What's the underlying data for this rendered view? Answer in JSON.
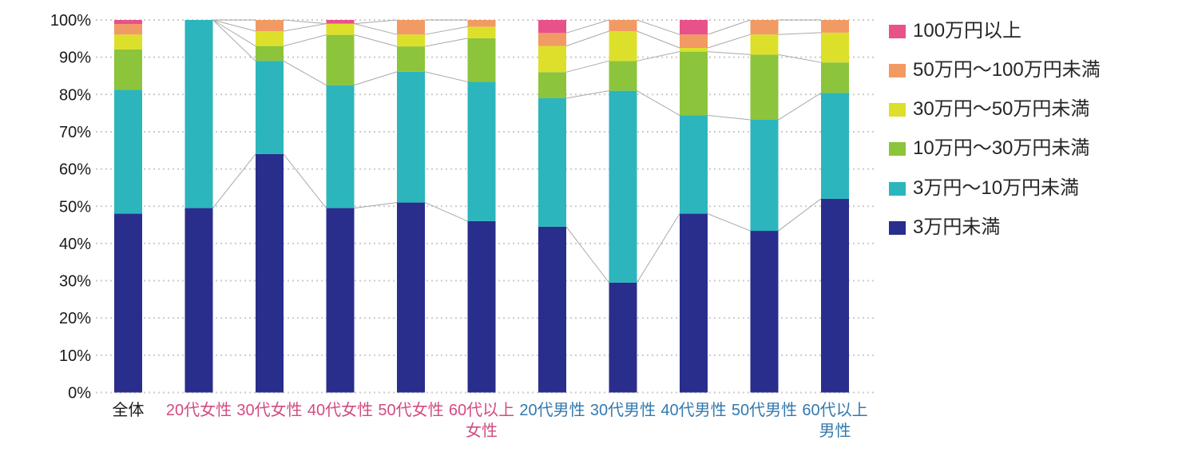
{
  "chart_data": {
    "type": "bar",
    "subtype": "stacked-100-percent",
    "title": "",
    "xlabel": "",
    "ylabel": "",
    "ylim": [
      0,
      100
    ],
    "y_ticks": [
      "0%",
      "10%",
      "20%",
      "30%",
      "40%",
      "50%",
      "60%",
      "70%",
      "80%",
      "90%",
      "100%"
    ],
    "grid": "horizontal-dotted",
    "legend_position": "right",
    "categories": [
      {
        "label": [
          "全体"
        ],
        "label_color": "#1a1a1a"
      },
      {
        "label": [
          "20代女性"
        ],
        "label_color": "#d14b82"
      },
      {
        "label": [
          "30代女性"
        ],
        "label_color": "#d14b82"
      },
      {
        "label": [
          "40代女性"
        ],
        "label_color": "#d14b82"
      },
      {
        "label": [
          "50代女性"
        ],
        "label_color": "#d14b82"
      },
      {
        "label": [
          "60代以上",
          "女性"
        ],
        "label_color": "#d14b82"
      },
      {
        "label": [
          "20代男性"
        ],
        "label_color": "#3379ae"
      },
      {
        "label": [
          "30代男性"
        ],
        "label_color": "#3379ae"
      },
      {
        "label": [
          "40代男性"
        ],
        "label_color": "#3379ae"
      },
      {
        "label": [
          "50代男性"
        ],
        "label_color": "#3379ae"
      },
      {
        "label": [
          "60代以上",
          "男性"
        ],
        "label_color": "#3379ae"
      }
    ],
    "series": [
      {
        "name": "3万円未満",
        "color": "#292e8c",
        "values": [
          48,
          49.5,
          64,
          49.5,
          51,
          46,
          44.5,
          29.5,
          48,
          43.4,
          52
        ]
      },
      {
        "name": "3万円〜10万円未満",
        "color": "#2cb5bd",
        "values": [
          33.3,
          50.5,
          25,
          33,
          35.1,
          37.4,
          34.5,
          51.5,
          26.4,
          29.8,
          28.4
        ]
      },
      {
        "name": "10万円〜30万円未満",
        "color": "#8cc43c",
        "values": [
          10.8,
          0,
          4,
          13.5,
          6.8,
          11.7,
          7,
          8,
          17.1,
          17.5,
          8.2
        ]
      },
      {
        "name": "30万円〜50万円未満",
        "color": "#dce02a",
        "values": [
          4,
          0,
          4,
          3,
          3.2,
          3.1,
          7,
          8,
          1,
          5.4,
          8
        ]
      },
      {
        "name": "50万円〜100万円未満",
        "color": "#f19a63",
        "values": [
          2.8,
          0,
          3,
          0,
          3.9,
          1.8,
          3.5,
          3,
          3.6,
          3.9,
          3.4
        ]
      },
      {
        "name": "100万円以上",
        "color": "#e85189",
        "values": [
          1.1,
          0,
          0,
          1,
          0,
          0,
          3.5,
          0,
          3.9,
          0,
          0
        ]
      }
    ],
    "connector_groups": [
      [
        1,
        2,
        3,
        4,
        5
      ],
      [
        6,
        7,
        8,
        9,
        10
      ]
    ]
  }
}
